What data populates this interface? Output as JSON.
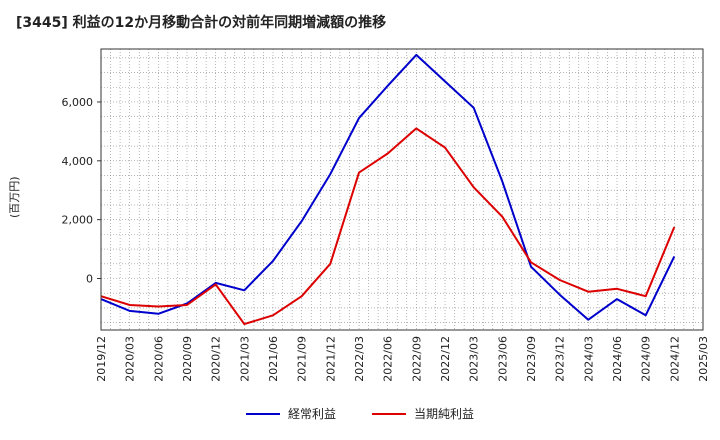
{
  "chart_data": {
    "type": "line",
    "title": "[3445]  利益の12か月移動合計の対前年同期増減額の推移",
    "ylabel": "(百万円)",
    "xlabel": "",
    "x": [
      "2019/12",
      "2020/03",
      "2020/06",
      "2020/09",
      "2020/12",
      "2021/03",
      "2021/06",
      "2021/09",
      "2021/12",
      "2022/03",
      "2022/06",
      "2022/09",
      "2022/12",
      "2023/03",
      "2023/06",
      "2023/09",
      "2023/12",
      "2024/03",
      "2024/06",
      "2024/09",
      "2024/12",
      "2025/03"
    ],
    "ylim": [
      -1750,
      7800
    ],
    "yticks": [
      0,
      2000,
      4000,
      6000
    ],
    "ytick_labels": [
      "0",
      "2,000",
      "4,000",
      "6,000"
    ],
    "grid": true,
    "legend_position": "bottom",
    "series": [
      {
        "name": "経常利益",
        "color": "#0000cc",
        "values": [
          -700,
          -1100,
          -1200,
          -850,
          -150,
          -400,
          600,
          1950,
          3550,
          5450,
          6550,
          7600,
          6700,
          5800,
          3300,
          400,
          -550,
          -1400,
          -700,
          -1250,
          750,
          null
        ]
      },
      {
        "name": "当期純利益",
        "color": "#dd0000",
        "values": [
          -600,
          -900,
          -950,
          -900,
          -200,
          -1550,
          -1250,
          -600,
          500,
          3600,
          4250,
          5100,
          4450,
          3100,
          2100,
          550,
          -50,
          -450,
          -350,
          -600,
          1750,
          null
        ]
      }
    ]
  }
}
